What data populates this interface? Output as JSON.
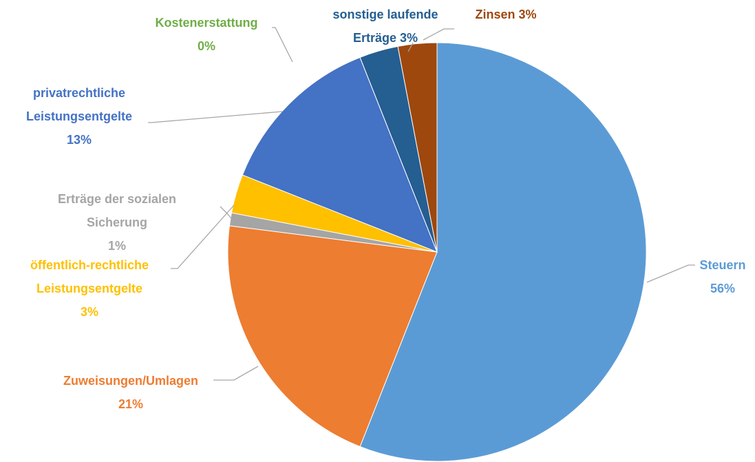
{
  "chart_data": {
    "type": "pie",
    "categories": [
      "Steuern",
      "Zuweisungen/Umlagen",
      "Erträge der sozialen Sicherung",
      "öffentlich-rechtliche Leistungsentgelte",
      "privatrechtliche Leistungsentgelte",
      "Kostenerstattung",
      "sonstige laufende Erträge",
      "Zinsen"
    ],
    "values": [
      56,
      21,
      1,
      3,
      13,
      0,
      3,
      3
    ],
    "value_labels": [
      "56%",
      "21%",
      "1%",
      "3%",
      "13%",
      "0%",
      "3%",
      "3%"
    ],
    "colors": [
      "#5b9bd5",
      "#ed7d31",
      "#a5a5a5",
      "#ffc000",
      "#4472c4",
      "#70ad47",
      "#255e91",
      "#9e480e"
    ]
  }
}
